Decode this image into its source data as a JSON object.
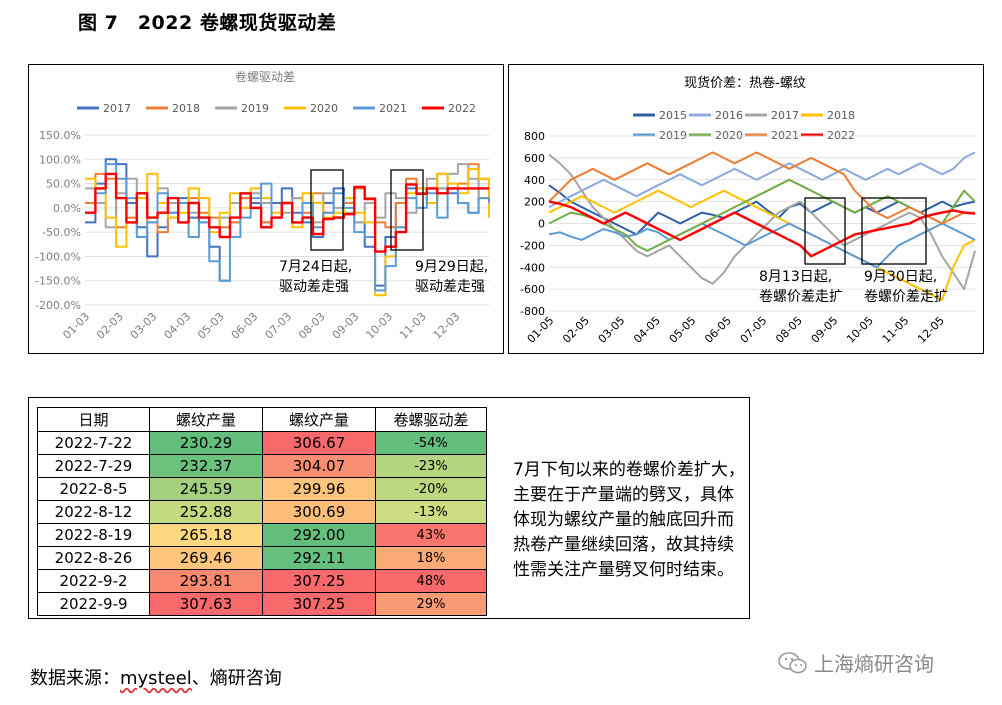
{
  "figure_title": "图 7　2022 卷螺现货驱动差",
  "left_chart_annotations": [
    "7月24日起,",
    "驱动差走强",
    "9月29日起,",
    "驱动差走强"
  ],
  "right_chart_annotations": [
    "8月13日起,",
    "卷螺价差走扩",
    "9月30日起,",
    "卷螺价差走扩"
  ],
  "chart_data": [
    {
      "type": "line",
      "title": "卷螺驱动差",
      "xlabel": "",
      "ylabel": "",
      "x_ticks": [
        "01-03",
        "02-03",
        "03-03",
        "04-03",
        "05-03",
        "06-03",
        "07-03",
        "08-03",
        "09-03",
        "10-03",
        "11-03",
        "12-03"
      ],
      "y_ticks": [
        "150.0%",
        "100.0%",
        "50.0%",
        "0.0%",
        "-50.0%",
        "-100.0%",
        "-150.0%",
        "-200.0%"
      ],
      "ylim": [
        -200,
        150
      ],
      "legend_position": "top",
      "series": [
        {
          "name": "2017",
          "color": "#4472c4",
          "values": [
            -30,
            50,
            100,
            90,
            10,
            -40,
            -100,
            -40,
            -10,
            20,
            -20,
            -30,
            -80,
            -150,
            -30,
            20,
            10,
            -30,
            10,
            40,
            -10,
            -30,
            -60,
            10,
            40,
            10,
            -30,
            -80,
            -160,
            -60,
            10,
            40,
            30,
            10,
            40,
            30,
            10,
            -10,
            40,
            30
          ]
        },
        {
          "name": "2018",
          "color": "#ed7d31",
          "values": [
            10,
            70,
            60,
            -40,
            -20,
            30,
            -30,
            -50,
            -20,
            10,
            20,
            -10,
            -20,
            -40,
            -30,
            20,
            0,
            -30,
            -20,
            10,
            20,
            -10,
            30,
            -10,
            -20,
            10,
            40,
            20,
            -30,
            -40,
            10,
            60,
            40,
            10,
            70,
            40,
            50,
            90,
            60,
            50
          ]
        },
        {
          "name": "2019",
          "color": "#a5a5a5",
          "values": [
            40,
            10,
            -40,
            30,
            60,
            20,
            -20,
            40,
            10,
            -30,
            -10,
            20,
            -40,
            -20,
            10,
            0,
            30,
            10,
            -20,
            -10,
            20,
            10,
            -30,
            30,
            0,
            -10,
            -30,
            10,
            -20,
            30,
            20,
            -10,
            30,
            60,
            40,
            70,
            90,
            60,
            20,
            40
          ]
        },
        {
          "name": "2020",
          "color": "#ffc000",
          "values": [
            60,
            40,
            -20,
            -80,
            -30,
            20,
            70,
            10,
            -20,
            -10,
            40,
            20,
            -50,
            -10,
            30,
            0,
            40,
            20,
            -10,
            10,
            -40,
            30,
            10,
            -20,
            -10,
            20,
            -10,
            -30,
            -180,
            -100,
            -40,
            30,
            40,
            10,
            70,
            50,
            30,
            80,
            60,
            -20
          ]
        },
        {
          "name": "2021",
          "color": "#5b9bd5",
          "values": [
            -10,
            30,
            90,
            60,
            20,
            -60,
            -30,
            30,
            -10,
            10,
            -60,
            -30,
            -110,
            -150,
            -60,
            -20,
            20,
            50,
            -20,
            10,
            -30,
            10,
            -40,
            -10,
            30,
            0,
            -50,
            -60,
            -170,
            -120,
            -40,
            20,
            0,
            30,
            -20,
            40,
            10,
            -10,
            20,
            10
          ]
        },
        {
          "name": "2022",
          "color": "#ff0000",
          "values": [
            -10,
            40,
            70,
            20,
            -30,
            30,
            -20,
            -10,
            20,
            -30,
            10,
            -20,
            -40,
            -60,
            -20,
            30,
            0,
            -40,
            -20,
            10,
            -30,
            -20,
            -54,
            -23,
            -20,
            -13,
            43,
            18,
            -90,
            -80,
            -50,
            48,
            29,
            40,
            30,
            40,
            40,
            40,
            40,
            40
          ]
        }
      ]
    },
    {
      "type": "line",
      "title": "现货价差：热卷-螺纹",
      "xlabel": "",
      "ylabel": "",
      "x_ticks": [
        "01-05",
        "02-05",
        "03-05",
        "04-05",
        "05-05",
        "06-05",
        "07-05",
        "08-05",
        "09-05",
        "10-05",
        "11-05",
        "12-05"
      ],
      "y_ticks": [
        "800",
        "600",
        "400",
        "200",
        "0",
        "-200",
        "-400",
        "-600",
        "-800"
      ],
      "ylim": [
        -800,
        800
      ],
      "legend_position": "top",
      "series": [
        {
          "name": "2015",
          "color": "#2e5fa6",
          "values": [
            350,
            280,
            200,
            150,
            100,
            50,
            0,
            -50,
            -100,
            0,
            100,
            50,
            0,
            50,
            100,
            80,
            50,
            100,
            150,
            200,
            120,
            50,
            150,
            180,
            100,
            150,
            200,
            150,
            100,
            150,
            100,
            150,
            200,
            150,
            100,
            150,
            200,
            150,
            180,
            200
          ]
        },
        {
          "name": "2016",
          "color": "#8eaadb",
          "values": [
            150,
            200,
            250,
            300,
            350,
            400,
            350,
            300,
            250,
            300,
            350,
            400,
            450,
            400,
            350,
            400,
            450,
            500,
            450,
            400,
            450,
            500,
            550,
            500,
            450,
            400,
            450,
            500,
            450,
            400,
            450,
            500,
            450,
            500,
            550,
            500,
            450,
            500,
            600,
            650
          ]
        },
        {
          "name": "2017",
          "color": "#a5a5a5",
          "values": [
            630,
            550,
            450,
            300,
            150,
            50,
            -50,
            -150,
            -250,
            -300,
            -250,
            -200,
            -300,
            -400,
            -500,
            -550,
            -450,
            -300,
            -200,
            -100,
            0,
            100,
            150,
            200,
            100,
            0,
            -100,
            -200,
            -150,
            -100,
            -50,
            0,
            50,
            100,
            50,
            -100,
            -300,
            -450,
            -600,
            -250
          ]
        },
        {
          "name": "2018",
          "color": "#ffc000",
          "values": [
            100,
            150,
            200,
            250,
            200,
            150,
            100,
            150,
            200,
            250,
            300,
            250,
            200,
            150,
            200,
            250,
            300,
            250,
            200,
            150,
            100,
            50,
            0,
            -50,
            -100,
            -150,
            -200,
            -250,
            -300,
            -350,
            -400,
            -450,
            -500,
            -550,
            -600,
            -650,
            -700,
            -400,
            -200,
            -150
          ]
        },
        {
          "name": "2019",
          "color": "#5b9bd5",
          "values": [
            -100,
            -80,
            -120,
            -150,
            -100,
            -50,
            -80,
            -120,
            -100,
            -50,
            -80,
            -150,
            -100,
            -50,
            0,
            -50,
            -100,
            -150,
            -200,
            -150,
            -100,
            -50,
            0,
            -50,
            -100,
            -150,
            -200,
            -250,
            -300,
            -350,
            -400,
            -300,
            -200,
            -150,
            -100,
            -50,
            0,
            -50,
            -100,
            -150
          ]
        },
        {
          "name": "2020",
          "color": "#70ad47",
          "values": [
            0,
            50,
            100,
            80,
            50,
            0,
            -50,
            -100,
            -200,
            -250,
            -200,
            -150,
            -100,
            -50,
            0,
            50,
            100,
            150,
            200,
            250,
            300,
            350,
            400,
            350,
            300,
            250,
            200,
            150,
            100,
            150,
            200,
            250,
            200,
            150,
            100,
            50,
            0,
            150,
            300,
            200
          ]
        },
        {
          "name": "2021",
          "color": "#ed7d31",
          "values": [
            200,
            300,
            400,
            450,
            500,
            450,
            400,
            450,
            500,
            550,
            500,
            450,
            500,
            550,
            600,
            650,
            600,
            550,
            600,
            650,
            600,
            550,
            500,
            550,
            600,
            550,
            500,
            450,
            300,
            200,
            100,
            50,
            100,
            150,
            100,
            50,
            0,
            50,
            100,
            100
          ]
        },
        {
          "name": "2022",
          "color": "#ff0000",
          "values": [
            200,
            180,
            150,
            100,
            50,
            0,
            50,
            100,
            50,
            0,
            -50,
            -100,
            -150,
            -100,
            -50,
            0,
            50,
            100,
            50,
            0,
            -50,
            -100,
            -150,
            -200,
            -300,
            -250,
            -200,
            -150,
            -100,
            -80,
            -60,
            -40,
            -20,
            0,
            50,
            80,
            100,
            120,
            100,
            90
          ]
        }
      ]
    }
  ],
  "table": {
    "headers": [
      "日期",
      "螺纹产量",
      "螺纹产量",
      "卷螺驱动差"
    ],
    "rows": [
      {
        "date": "2022-7-22",
        "v1": "230.29",
        "v2": "306.67",
        "v3": "-54%",
        "c1": "#63be7b",
        "c2": "#f8696b",
        "c3": "#63be7b"
      },
      {
        "date": "2022-7-29",
        "v1": "232.37",
        "v2": "304.07",
        "v3": "-23%",
        "c1": "#6cc17d",
        "c2": "#f98e72",
        "c3": "#b5d680"
      },
      {
        "date": "2022-8-5",
        "v1": "245.59",
        "v2": "299.96",
        "v3": "-20%",
        "c1": "#a2d07f",
        "c2": "#fcc47c",
        "c3": "#bcd881"
      },
      {
        "date": "2022-8-12",
        "v1": "252.88",
        "v2": "300.69",
        "v3": "-13%",
        "c1": "#c4da81",
        "c2": "#fcbd7b",
        "c3": "#cddd82"
      },
      {
        "date": "2022-8-19",
        "v1": "265.18",
        "v2": "292.00",
        "v3": "43%",
        "c1": "#fdd87f",
        "c2": "#63be7b",
        "c3": "#f8766d"
      },
      {
        "date": "2022-8-26",
        "v1": "269.46",
        "v2": "292.11",
        "v3": "18%",
        "c1": "#fdc67c",
        "c2": "#66bf7c",
        "c3": "#fcab77"
      },
      {
        "date": "2022-9-2",
        "v1": "293.81",
        "v2": "307.25",
        "v3": "48%",
        "c1": "#f98871",
        "c2": "#f8696b",
        "c3": "#f8696b"
      },
      {
        "date": "2022-9-9",
        "v1": "307.63",
        "v2": "307.25",
        "v3": "29%",
        "c1": "#f8696b",
        "c2": "#f8696b",
        "c3": "#f99b74"
      }
    ]
  },
  "note": "7月下旬以来的卷螺价差扩大，主要在于产量端的劈叉，具体体现为螺纹产量的触底回升而热卷产量继续回落，故其持续性需关注产量劈叉何时结束。",
  "source": {
    "prefix": "数据来源：",
    "brand": "mysteel",
    "suffix": "、熵研咨询"
  },
  "wechat_label": "上海熵研咨询"
}
